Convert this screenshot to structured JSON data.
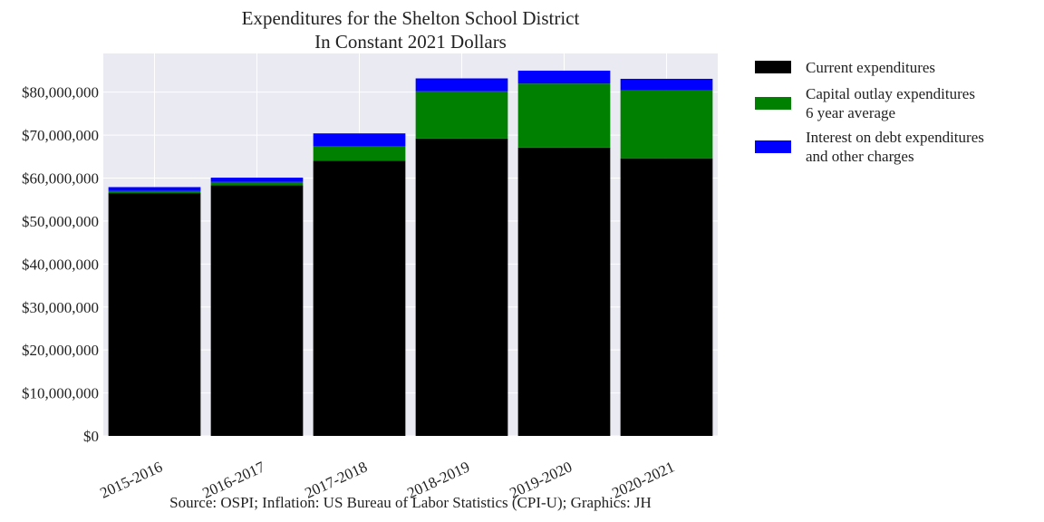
{
  "chart_data": {
    "type": "bar",
    "stacked": true,
    "title": "Expenditures for the Shelton School District",
    "subtitle": "In Constant 2021 Dollars",
    "xlabel": "",
    "ylabel": "",
    "categories": [
      "2015-2016",
      "2016-2017",
      "2017-2018",
      "2018-2019",
      "2019-2020",
      "2020-2021"
    ],
    "series": [
      {
        "name": "Current expenditures",
        "color": "#000000",
        "values": [
          56500000,
          58300000,
          64000000,
          69200000,
          67100000,
          64600000
        ]
      },
      {
        "name": "Capital outlay expenditures",
        "name_line2": "6 year average",
        "color": "#008000",
        "values": [
          500000,
          800000,
          3400000,
          11000000,
          14900000,
          15800000
        ]
      },
      {
        "name": "Interest on debt expenditures",
        "name_line2": "and other charges",
        "color": "#0000ff",
        "values": [
          900000,
          1000000,
          3000000,
          3000000,
          3000000,
          2700000
        ]
      }
    ],
    "ylim": [
      0,
      89000000
    ],
    "yticks": [
      0,
      10000000,
      20000000,
      30000000,
      40000000,
      50000000,
      60000000,
      70000000,
      80000000
    ],
    "ytick_labels": [
      "$0",
      "$10,000,000",
      "$20,000,000",
      "$30,000,000",
      "$40,000,000",
      "$50,000,000",
      "$60,000,000",
      "$70,000,000",
      "$80,000,000"
    ],
    "grid": true,
    "legend_position": "outside-right-top",
    "background_color": "#eaeaf2",
    "source": "Source: OSPI; Inflation: US Bureau of Labor Statistics (CPI-U); Graphics: JH"
  }
}
